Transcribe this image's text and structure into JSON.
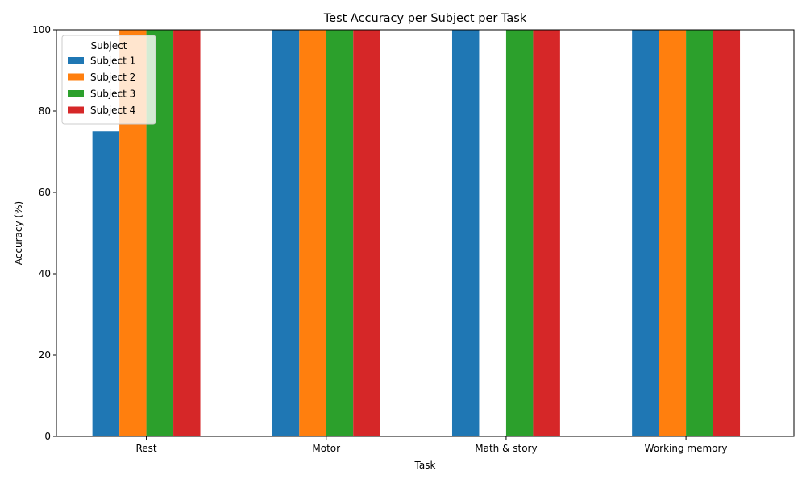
{
  "chart_data": {
    "type": "bar",
    "title": "Test Accuracy per Subject per Task",
    "xlabel": "Task",
    "ylabel": "Accuracy (%)",
    "ylim": [
      0,
      100
    ],
    "yticks": [
      0,
      20,
      40,
      60,
      80,
      100
    ],
    "categories": [
      "Rest",
      "Motor",
      "Math & story",
      "Working memory"
    ],
    "series": [
      {
        "name": "Subject 1",
        "color": "#1f77b4",
        "values": [
          75,
          100,
          100,
          100
        ]
      },
      {
        "name": "Subject 2",
        "color": "#ff7f0e",
        "values": [
          100,
          100,
          0,
          100
        ]
      },
      {
        "name": "Subject 3",
        "color": "#2ca02c",
        "values": [
          100,
          100,
          100,
          100
        ]
      },
      {
        "name": "Subject 4",
        "color": "#d62728",
        "values": [
          100,
          100,
          100,
          100
        ]
      }
    ],
    "legend": {
      "title": "Subject",
      "placement": "top-left"
    },
    "grid": false
  }
}
